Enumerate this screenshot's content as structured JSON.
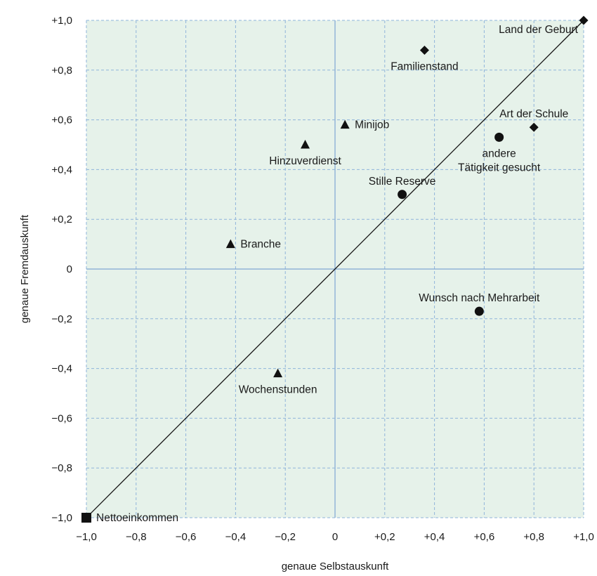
{
  "chart_data": {
    "type": "scatter",
    "title": "",
    "xlabel": "genaue Selbstauskunft",
    "ylabel": "genaue Fremdauskunft",
    "xlim": [
      -1.0,
      1.0
    ],
    "ylim": [
      -1.0,
      1.0
    ],
    "x_ticks": [
      -1.0,
      -0.8,
      -0.6,
      -0.4,
      -0.2,
      0,
      0.2,
      0.4,
      0.6,
      0.8,
      1.0
    ],
    "x_tick_labels": [
      "−1,0",
      "−0,8",
      "−0,6",
      "−0,4",
      "−0,2",
      "0",
      "+0,2",
      "+0,4",
      "+0,6",
      "+0,8",
      "+1,0"
    ],
    "y_ticks": [
      1.0,
      0.8,
      0.6,
      0.4,
      0.2,
      0,
      -0.2,
      -0.4,
      -0.6,
      -0.8,
      -1.0
    ],
    "y_tick_labels": [
      "+1,0",
      "+0,8",
      "+0,6",
      "+0,4",
      "+0,2",
      "0",
      "−0,2",
      "−0,4",
      "−0,6",
      "−0,8",
      "−1,0"
    ],
    "grid": true,
    "reference_line": {
      "from": [
        -1.0,
        -1.0
      ],
      "to": [
        1.0,
        1.0
      ]
    },
    "points": [
      {
        "label": "Land der Geburt",
        "x": 1.0,
        "y": 1.0,
        "marker": "diamond",
        "label_pos": "left-below"
      },
      {
        "label": "Familienstand",
        "x": 0.36,
        "y": 0.88,
        "marker": "diamond",
        "label_pos": "below"
      },
      {
        "label": "Art der Schule",
        "x": 0.8,
        "y": 0.57,
        "marker": "diamond",
        "label_pos": "above"
      },
      {
        "label": "Minijob",
        "x": 0.04,
        "y": 0.58,
        "marker": "triangle",
        "label_pos": "right"
      },
      {
        "label": "Hinzuverdienst",
        "x": -0.12,
        "y": 0.5,
        "marker": "triangle",
        "label_pos": "below"
      },
      {
        "label": "Branche",
        "x": -0.42,
        "y": 0.1,
        "marker": "triangle",
        "label_pos": "right"
      },
      {
        "label": "Wochenstunden",
        "x": -0.23,
        "y": -0.42,
        "marker": "triangle",
        "label_pos": "below"
      },
      {
        "label": "andere\nTätigkeit gesucht",
        "x": 0.66,
        "y": 0.53,
        "marker": "circle",
        "label_pos": "below"
      },
      {
        "label": "Stille Reserve",
        "x": 0.27,
        "y": 0.3,
        "marker": "circle",
        "label_pos": "above"
      },
      {
        "label": "Wunsch nach Mehrarbeit",
        "x": 0.58,
        "y": -0.17,
        "marker": "circle",
        "label_pos": "above"
      },
      {
        "label": "Nettoeinkommen",
        "x": -1.0,
        "y": -1.0,
        "marker": "square",
        "label_pos": "right"
      }
    ],
    "colors": {
      "plot_background": "#e6f2ea",
      "grid": "#8fb4da",
      "zero_line": "#7fa7d4",
      "markers": "#111111",
      "reference_line": "#111111"
    }
  }
}
